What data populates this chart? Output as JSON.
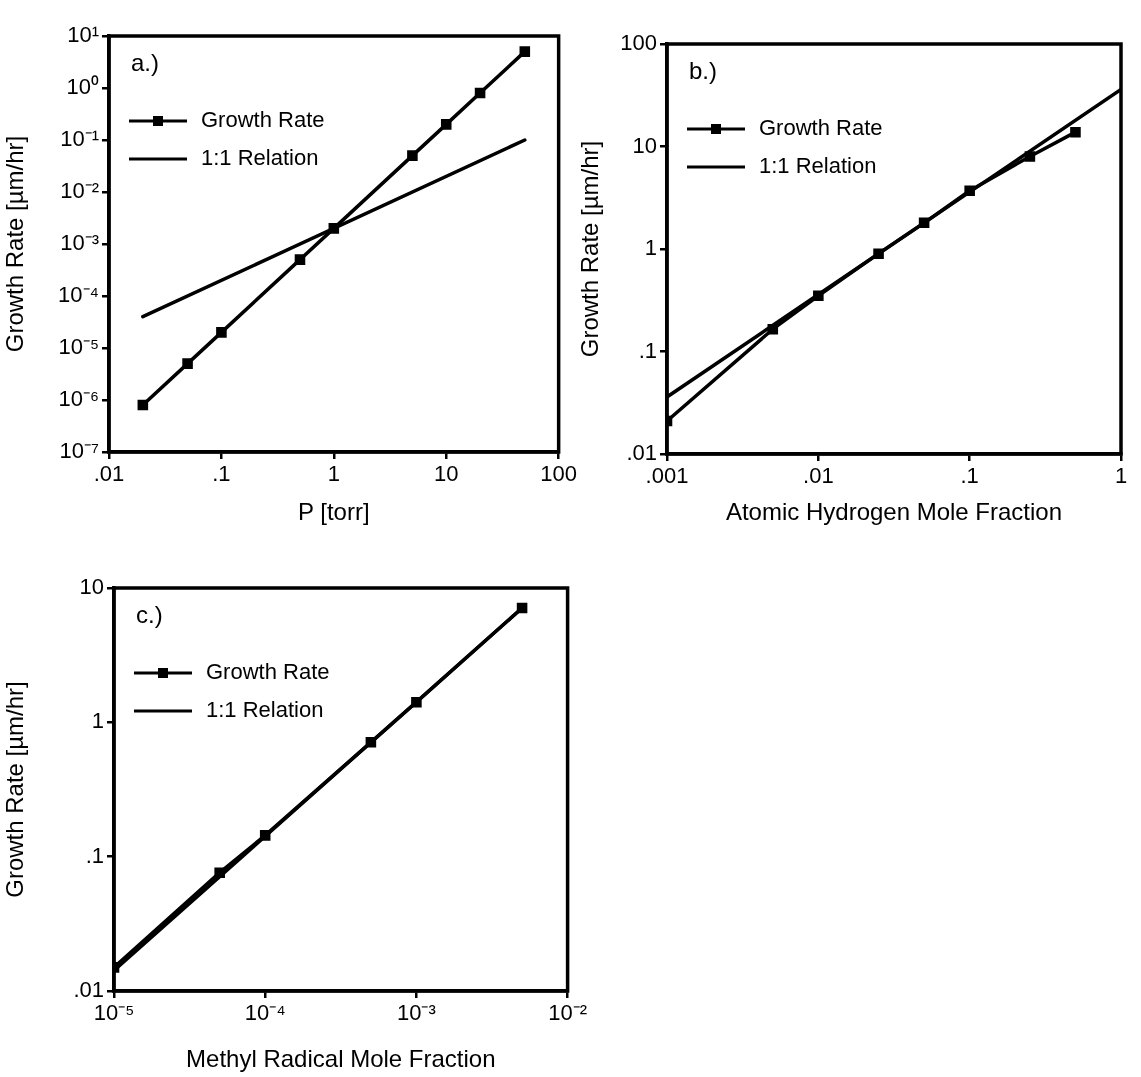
{
  "chart_data": [
    {
      "type": "line",
      "title": "a.)",
      "xlabel": "P [torr]",
      "ylabel": "Growth Rate [µm/hr]",
      "log": "xy",
      "grid": false,
      "legend": "top left",
      "xlim": [
        0.01,
        100
      ],
      "xticks": [
        {
          "value": 0.01,
          "label": ".01"
        },
        {
          "value": 0.1,
          "label": ".1"
        },
        1,
        10,
        100
      ],
      "ylim": [
        1e-07,
        10
      ],
      "yticks": [
        {
          "value": 1e-07,
          "label": "10⁻⁷"
        },
        {
          "value": 1e-06,
          "label": "10⁻⁶"
        },
        {
          "value": 1e-05,
          "label": "10⁻⁵"
        },
        {
          "value": 0.0001,
          "label": "10⁻⁴"
        },
        {
          "value": 0.001,
          "label": "10⁻³"
        },
        {
          "value": 0.01,
          "label": "10⁻²"
        },
        {
          "value": 0.1,
          "label": "10⁻¹"
        },
        {
          "value": 1,
          "label": "10⁰"
        },
        {
          "value": 10,
          "label": "10¹"
        }
      ],
      "series": [
        {
          "name": "Growth Rate",
          "color": "#000000",
          "marker": "square",
          "x": [
            0.02,
            0.05,
            0.1,
            0.5,
            1,
            5,
            10,
            20,
            50
          ],
          "values": [
            8e-07,
            5e-06,
            2e-05,
            0.0005,
            0.002,
            0.05,
            0.2,
            0.8,
            5
          ]
        },
        {
          "name": "1:1 Relation",
          "color": "#000000",
          "marker": "none",
          "x": [
            0.02,
            50
          ],
          "values": [
            4e-05,
            0.1
          ]
        }
      ]
    },
    {
      "type": "line",
      "title": "b.)",
      "xlabel": "Atomic Hydrogen Mole Fraction",
      "ylabel": "Growth Rate [µm/hr]",
      "log": "xy",
      "grid": false,
      "legend": "top left",
      "xlim": [
        0.001,
        1
      ],
      "xticks": [
        {
          "value": 0.001,
          "label": ".001"
        },
        {
          "value": 0.01,
          "label": ".01"
        },
        {
          "value": 0.1,
          "label": ".1"
        },
        1
      ],
      "ylim": [
        0.01,
        100
      ],
      "yticks": [
        {
          "value": 0.01,
          "label": ".01"
        },
        {
          "value": 0.1,
          "label": ".1"
        },
        1,
        10,
        100
      ],
      "series": [
        {
          "name": "Growth Rate",
          "color": "#000000",
          "marker": "square",
          "x": [
            0.001,
            0.005,
            0.01,
            0.025,
            0.05,
            0.1,
            0.25,
            0.5
          ],
          "values": [
            0.021,
            0.165,
            0.35,
            0.9,
            1.8,
            3.7,
            8,
            13.8
          ]
        },
        {
          "name": "1:1 Relation",
          "color": "#000000",
          "marker": "none",
          "x": [
            0.001,
            1
          ],
          "values": [
            0.036,
            36
          ]
        }
      ]
    },
    {
      "type": "line",
      "title": "c.)",
      "xlabel": "Methyl Radical Mole Fraction",
      "ylabel": "Growth Rate [µm/hr]",
      "log": "xy",
      "grid": false,
      "legend": "top left",
      "xlim": [
        1e-05,
        0.01
      ],
      "xticks": [
        {
          "value": 1e-05,
          "label": "10⁻⁵"
        },
        {
          "value": 0.0001,
          "label": "10⁻⁴"
        },
        {
          "value": 0.001,
          "label": "10⁻³"
        },
        {
          "value": 0.01,
          "label": "10⁻²"
        }
      ],
      "ylim": [
        0.01,
        10
      ],
      "yticks": [
        {
          "value": 0.01,
          "label": ".01"
        },
        {
          "value": 0.1,
          "label": ".1"
        },
        1,
        10
      ],
      "series": [
        {
          "name": "Growth Rate",
          "color": "#000000",
          "marker": "square",
          "x": [
            1e-05,
            5e-05,
            0.0001,
            0.0005,
            0.001,
            0.005
          ],
          "values": [
            0.015,
            0.076,
            0.144,
            0.71,
            1.41,
            7.1
          ]
        },
        {
          "name": "1:1 Relation",
          "color": "#000000",
          "marker": "none",
          "x": [
            1e-05,
            0.005
          ],
          "values": [
            0.0142,
            7.1
          ]
        }
      ]
    }
  ]
}
